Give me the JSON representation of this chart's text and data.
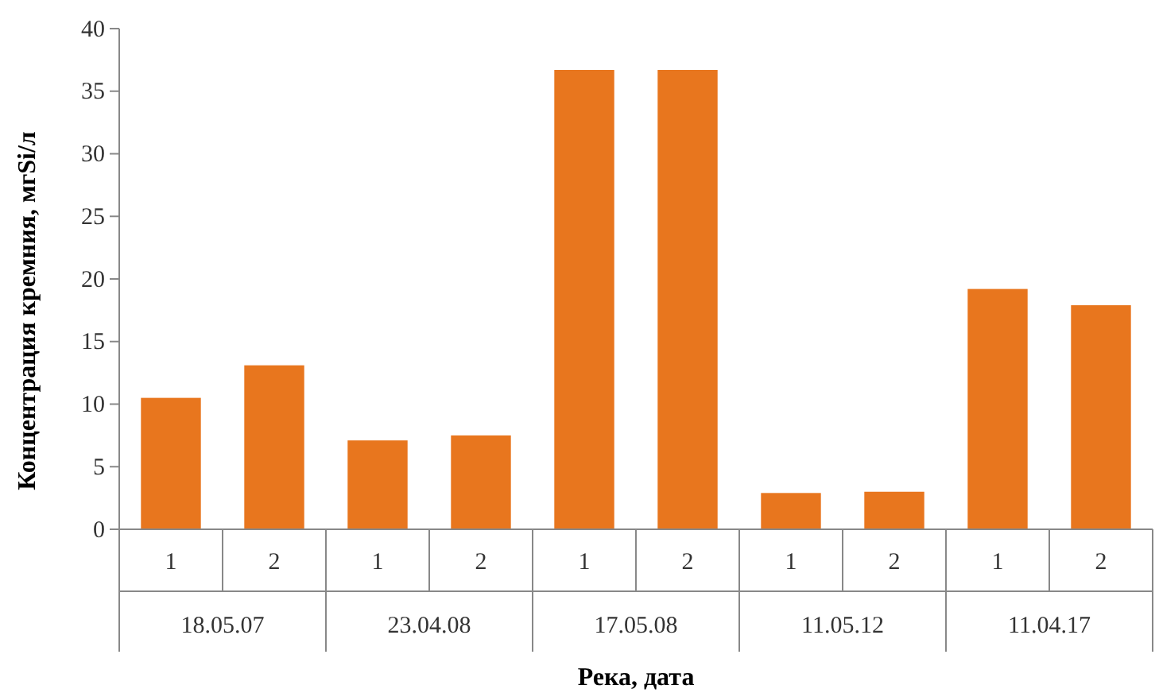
{
  "chart_data": {
    "type": "bar",
    "xlabel": "Река, дата",
    "ylabel": "Концентрация кремния, мгSi/л",
    "categories": [
      "1",
      "2",
      "1",
      "2",
      "1",
      "2",
      "1",
      "2",
      "1",
      "2"
    ],
    "values": [
      10.5,
      13.1,
      7.1,
      7.5,
      36.7,
      36.7,
      2.9,
      3.0,
      19.2,
      17.9
    ],
    "color": "#e8761e",
    "ylim": [
      0,
      40
    ],
    "yticks": [
      0,
      5,
      10,
      15,
      20,
      25,
      30,
      35,
      40
    ],
    "grid": false,
    "annotations": [
      "18.05.07",
      "23.04.08",
      "17.05.08",
      "11.05.12",
      "11.04.17"
    ]
  }
}
